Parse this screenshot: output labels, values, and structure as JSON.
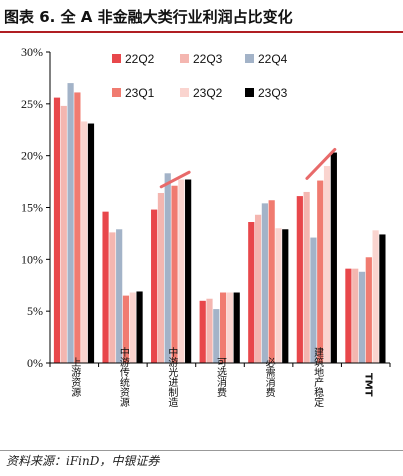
{
  "header": {
    "title": "图表 6. 全 A 非金融大类行业利润占比变化"
  },
  "footer": {
    "source": "资料来源：iFinD，中银证券"
  },
  "chart_data": {
    "type": "bar",
    "title": "",
    "xlabel": "",
    "ylabel": "",
    "ylim": [
      0,
      30
    ],
    "yticks": [
      "0%",
      "5%",
      "10%",
      "15%",
      "20%",
      "25%",
      "30%"
    ],
    "categories": [
      "上游资源",
      "中游传统资源",
      "中游光进制造",
      "可选消费",
      "必需消费",
      "建筑地产稳定",
      "TMT"
    ],
    "series": [
      {
        "name": "22Q2",
        "color": "#e8474b",
        "values": [
          25.6,
          14.6,
          14.8,
          6.0,
          13.6,
          16.1,
          9.1
        ]
      },
      {
        "name": "22Q3",
        "color": "#f4b6b0",
        "values": [
          24.8,
          12.6,
          16.4,
          6.2,
          14.3,
          16.5,
          9.1
        ]
      },
      {
        "name": "22Q4",
        "color": "#a3b3c8",
        "values": [
          27.0,
          12.9,
          18.3,
          5.2,
          15.4,
          12.1,
          8.8
        ]
      },
      {
        "name": "23Q1",
        "color": "#f07b70",
        "values": [
          26.1,
          6.5,
          17.1,
          6.8,
          15.7,
          17.6,
          10.2
        ]
      },
      {
        "name": "23Q2",
        "color": "#fad4cf",
        "values": [
          23.3,
          6.8,
          17.7,
          6.8,
          13.0,
          19.0,
          12.8
        ]
      },
      {
        "name": "23Q3",
        "color": "#000000",
        "values": [
          23.1,
          6.9,
          17.7,
          6.8,
          12.9,
          20.3,
          12.4
        ]
      }
    ],
    "trend_marks": [
      {
        "category": "中游光进制造",
        "from": 17.0,
        "to": 18.4
      },
      {
        "category": "建筑地产稳定",
        "from": 17.8,
        "to": 20.6
      }
    ],
    "trend_color": "#e86a6a",
    "legend": "top",
    "grid": false
  }
}
